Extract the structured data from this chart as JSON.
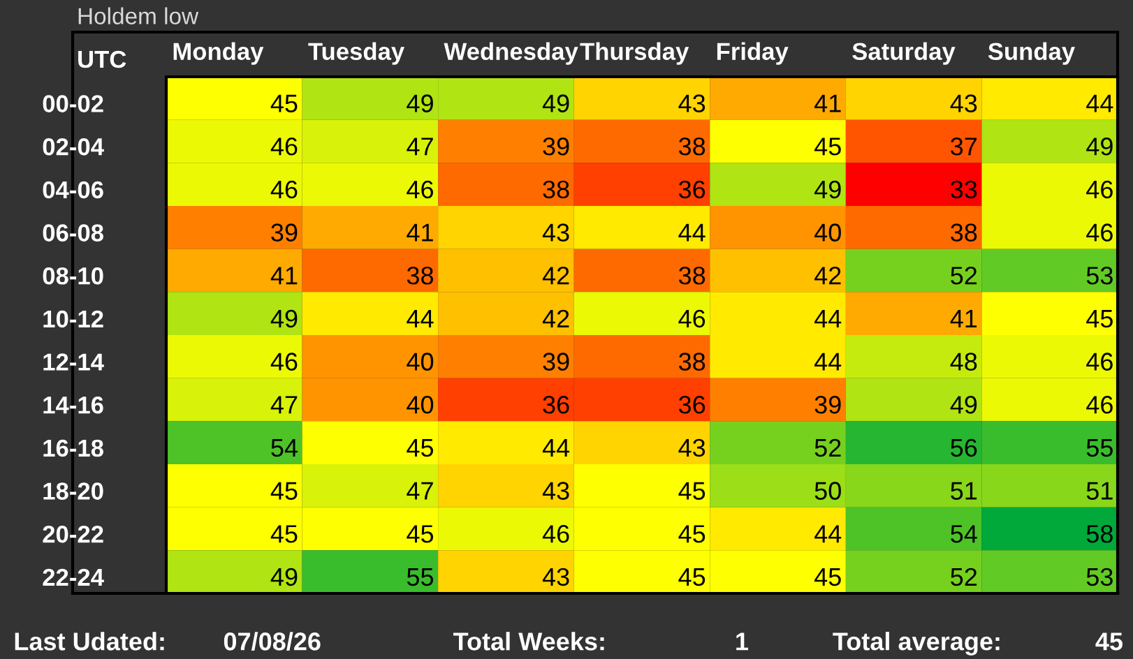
{
  "chart_data": {
    "type": "heatmap",
    "title": "Holdem low",
    "ylabel": "UTC",
    "categories": [
      "Monday",
      "Tuesday",
      "Wednesday",
      "Thursday",
      "Friday",
      "Saturday",
      "Sunday"
    ],
    "y_categories": [
      "00-02",
      "02-04",
      "04-06",
      "06-08",
      "08-10",
      "10-12",
      "12-14",
      "14-16",
      "16-18",
      "18-20",
      "20-22",
      "22-24"
    ],
    "cells": [
      [
        45,
        49,
        49,
        43,
        41,
        43,
        44
      ],
      [
        46,
        47,
        39,
        38,
        45,
        37,
        49
      ],
      [
        46,
        46,
        38,
        36,
        49,
        33,
        46
      ],
      [
        39,
        41,
        43,
        44,
        40,
        38,
        46
      ],
      [
        41,
        38,
        42,
        38,
        42,
        52,
        53
      ],
      [
        49,
        44,
        42,
        46,
        44,
        41,
        45
      ],
      [
        46,
        40,
        39,
        38,
        44,
        48,
        46
      ],
      [
        47,
        40,
        36,
        36,
        39,
        49,
        46
      ],
      [
        54,
        45,
        44,
        43,
        52,
        56,
        55
      ],
      [
        45,
        47,
        43,
        45,
        50,
        51,
        51
      ],
      [
        45,
        45,
        46,
        45,
        44,
        54,
        58
      ],
      [
        49,
        55,
        43,
        45,
        45,
        52,
        53
      ]
    ],
    "data_labels": true,
    "annotations": [
      "Last Udated:",
      "07/08/26",
      "Total Weeks:",
      "1",
      "Total average:",
      "45"
    ]
  }
}
